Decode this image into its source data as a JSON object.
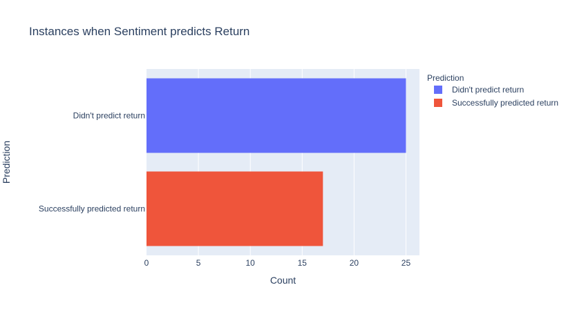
{
  "chart_data": {
    "type": "bar",
    "orientation": "horizontal",
    "title": "Instances when Sentiment predicts Return",
    "xlabel": "Count",
    "ylabel": "Prediction",
    "categories": [
      "Didn't predict return",
      "Successfully predicted return"
    ],
    "values": [
      25,
      17
    ],
    "xlim": [
      0,
      26.3
    ],
    "xticks": [
      0,
      5,
      10,
      15,
      20,
      25
    ],
    "grid": true,
    "legend": {
      "title": "Prediction",
      "placement": "top-right",
      "entries": [
        "Didn't predict return",
        "Successfully predicted return"
      ]
    },
    "colors": [
      "#636efa",
      "#ef553b"
    ]
  },
  "style": {
    "plot_background": "#e5ecf6",
    "grid_color": "#ffffff",
    "text_color": "#2a3f5f"
  }
}
